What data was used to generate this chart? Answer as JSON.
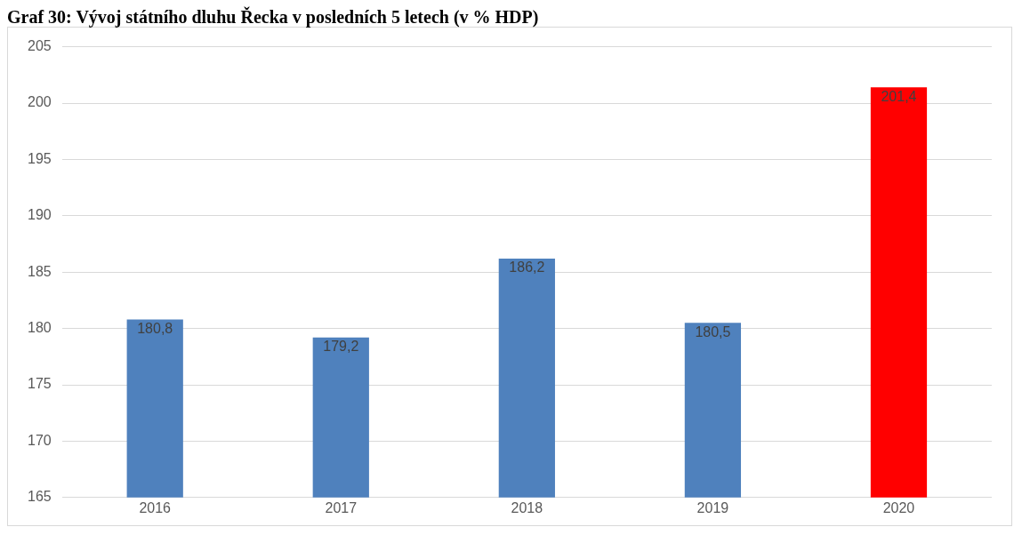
{
  "chart_data": {
    "type": "bar",
    "title": "Graf 30: Vývoj státního dluhu Řecka v posledních 5 letech (v % HDP)",
    "categories": [
      "2016",
      "2017",
      "2018",
      "2019",
      "2020"
    ],
    "values": [
      180.8,
      179.2,
      186.2,
      180.5,
      201.4
    ],
    "colors": [
      "#4f81bd",
      "#4f81bd",
      "#4f81bd",
      "#4f81bd",
      "#ff0000"
    ],
    "value_labels": [
      "180,8",
      "179,2",
      "186,2",
      "180,5",
      "201,4"
    ],
    "ylim": [
      165,
      205
    ],
    "yticks": [
      165,
      170,
      175,
      180,
      185,
      190,
      195,
      200,
      205
    ],
    "grid": "y",
    "legend": false
  }
}
